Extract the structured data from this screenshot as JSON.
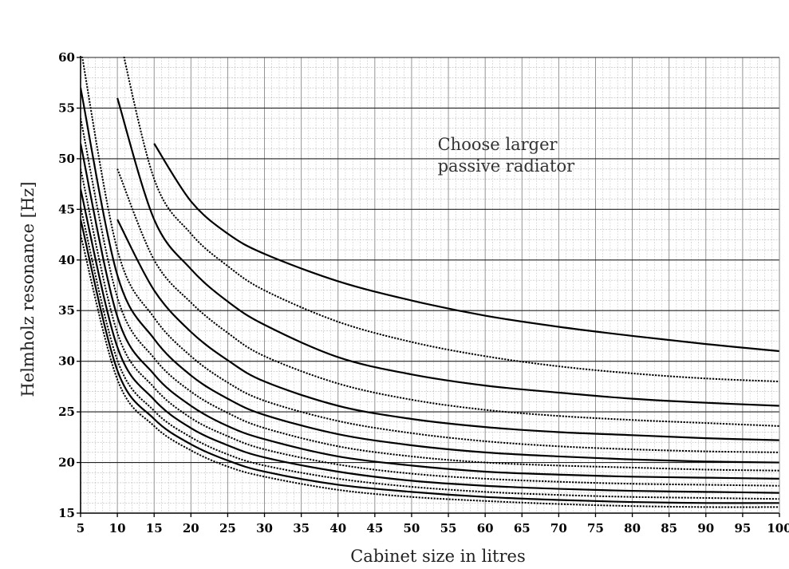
{
  "chart_data": {
    "type": "line",
    "xlabel": "Cabinet size in litres",
    "ylabel": "Helmholz resonance [Hz]",
    "xlim": [
      5,
      100
    ],
    "ylim": [
      15,
      60
    ],
    "x_ticks": [
      5,
      10,
      15,
      20,
      25,
      30,
      35,
      40,
      45,
      50,
      55,
      60,
      65,
      70,
      75,
      80,
      85,
      90,
      95,
      100
    ],
    "y_ticks": [
      15,
      20,
      25,
      30,
      35,
      40,
      45,
      50,
      55,
      60
    ],
    "grid": "on",
    "legend": "none",
    "annotations": [
      {
        "text_lines": [
          "Choose larger",
          "passive radiator"
        ],
        "at": {
          "x": 53,
          "y": 51.5
        }
      }
    ],
    "x": [
      5,
      10,
      15,
      20,
      25,
      30,
      40,
      50,
      60,
      70,
      80,
      90,
      100
    ],
    "series": [
      {
        "style": "solid",
        "values": [
          null,
          null,
          51.5,
          45.8,
          42.6,
          40.6,
          37.9,
          36.0,
          34.5,
          33.4,
          32.5,
          31.7,
          31.0
        ]
      },
      {
        "style": "dotted",
        "values": [
          null,
          63.0,
          48.0,
          42.6,
          39.4,
          37.0,
          33.9,
          31.9,
          30.5,
          29.5,
          28.8,
          28.3,
          28.0
        ]
      },
      {
        "style": "solid",
        "values": [
          null,
          56.0,
          44.0,
          39.1,
          35.9,
          33.6,
          30.4,
          28.7,
          27.6,
          26.9,
          26.3,
          25.9,
          25.6
        ]
      },
      {
        "style": "dotted",
        "values": [
          null,
          49.0,
          40.0,
          35.8,
          32.8,
          30.5,
          27.8,
          26.2,
          25.2,
          24.6,
          24.2,
          23.9,
          23.6
        ]
      },
      {
        "style": "solid",
        "values": [
          null,
          44.0,
          37.0,
          32.9,
          30.1,
          28.0,
          25.6,
          24.3,
          23.5,
          23.0,
          22.7,
          22.4,
          22.2
        ]
      },
      {
        "style": "dotted",
        "values": [
          61.0,
          41.0,
          34.3,
          30.5,
          27.9,
          26.1,
          24.1,
          22.9,
          22.1,
          21.6,
          21.3,
          21.1,
          21.0
        ]
      },
      {
        "style": "solid",
        "values": [
          57.0,
          38.5,
          32.2,
          28.6,
          26.3,
          24.7,
          22.8,
          21.7,
          21.0,
          20.6,
          20.3,
          20.1,
          20.0
        ]
      },
      {
        "style": "dotted",
        "values": [
          54.0,
          36.3,
          30.3,
          27.0,
          24.9,
          23.4,
          21.6,
          20.6,
          20.0,
          19.7,
          19.5,
          19.3,
          19.2
        ]
      },
      {
        "style": "solid",
        "values": [
          51.5,
          34.4,
          28.7,
          25.6,
          23.6,
          22.3,
          20.6,
          19.7,
          19.1,
          18.8,
          18.6,
          18.5,
          18.4
        ]
      },
      {
        "style": "dotted",
        "values": [
          49.0,
          32.8,
          27.4,
          24.4,
          22.6,
          21.3,
          19.8,
          18.9,
          18.4,
          18.1,
          17.9,
          17.8,
          17.7
        ]
      },
      {
        "style": "solid",
        "values": [
          47.0,
          31.4,
          26.2,
          23.4,
          21.7,
          20.5,
          19.1,
          18.2,
          17.7,
          17.4,
          17.2,
          17.1,
          17.0
        ]
      },
      {
        "style": "dotted",
        "values": [
          45.2,
          30.1,
          25.1,
          22.5,
          20.8,
          19.7,
          18.4,
          17.6,
          17.1,
          16.8,
          16.6,
          16.5,
          16.4
        ]
      },
      {
        "style": "solid",
        "values": [
          44.0,
          29.1,
          24.3,
          21.8,
          20.2,
          19.1,
          17.8,
          17.1,
          16.6,
          16.3,
          16.1,
          16.0,
          16.0
        ]
      },
      {
        "style": "dotted",
        "values": [
          42.5,
          28.2,
          23.6,
          21.2,
          19.6,
          18.6,
          17.3,
          16.6,
          16.2,
          15.9,
          15.7,
          15.6,
          15.6
        ]
      }
    ]
  }
}
